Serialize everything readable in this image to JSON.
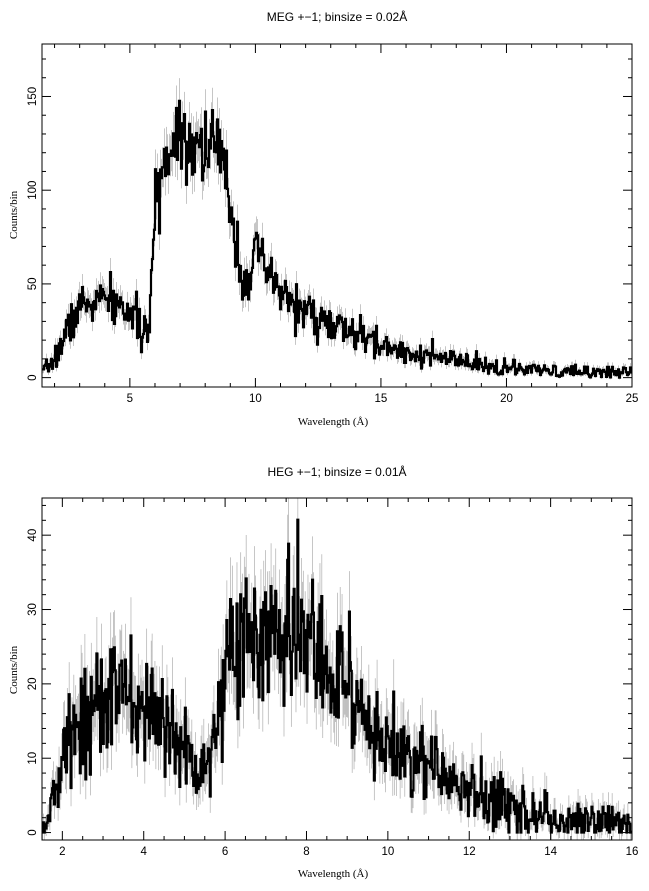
{
  "chart_data": [
    {
      "type": "line",
      "title": "MEG +−1; binsize = 0.02Å",
      "xlabel": "Wavelength (Å)",
      "ylabel": "Counts/bin",
      "xlim": [
        1.5,
        25
      ],
      "ylim": [
        -5,
        178
      ],
      "xticks": [
        5,
        10,
        15,
        20,
        25
      ],
      "yticks": [
        0,
        50,
        100,
        150
      ],
      "grid": false,
      "series": [
        {
          "style": "histogram-with-errorbars",
          "x": [
            1.5,
            2.0,
            2.5,
            3.0,
            3.5,
            4.0,
            4.5,
            5.0,
            5.5,
            5.8,
            6.0,
            6.5,
            7.0,
            7.5,
            8.0,
            8.5,
            9.0,
            9.5,
            10.0,
            10.5,
            11.0,
            12.0,
            13.0,
            14.0,
            15.0,
            16.0,
            17.0,
            18.0,
            19.0,
            20.0,
            21.0,
            22.0,
            23.0,
            24.0,
            25.0
          ],
          "values": [
            2,
            10,
            25,
            38,
            40,
            42,
            38,
            35,
            25,
            25,
            95,
            120,
            135,
            125,
            125,
            122,
            95,
            50,
            65,
            55,
            45,
            35,
            28,
            23,
            17,
            14,
            11,
            9,
            6,
            5,
            4,
            3,
            3,
            3,
            3
          ]
        }
      ]
    },
    {
      "type": "line",
      "title": "HEG +−1; binsize = 0.01Å",
      "xlabel": "Wavelength (Å)",
      "ylabel": "Counts/bin",
      "xlim": [
        1.5,
        16
      ],
      "ylim": [
        -1,
        45
      ],
      "xticks": [
        2,
        4,
        6,
        8,
        10,
        12,
        14,
        16
      ],
      "yticks": [
        0,
        10,
        20,
        30,
        40
      ],
      "grid": false,
      "series": [
        {
          "style": "histogram-with-errorbars",
          "x": [
            1.5,
            1.7,
            2.0,
            2.3,
            2.5,
            3.0,
            3.5,
            4.0,
            4.5,
            5.0,
            5.5,
            5.8,
            6.0,
            6.5,
            7.0,
            7.5,
            8.0,
            8.5,
            9.0,
            9.5,
            10.0,
            10.5,
            11.0,
            11.5,
            12.0,
            12.5,
            13.0,
            13.5,
            14.0,
            14.5,
            15.0,
            15.5,
            16.0
          ],
          "values": [
            0.5,
            3,
            9,
            14,
            16,
            18,
            18,
            16,
            15,
            11,
            9,
            14,
            24,
            26,
            26,
            26,
            26,
            23,
            19,
            15,
            12,
            10,
            9,
            7,
            5.5,
            4.5,
            3.5,
            2.5,
            2,
            2,
            1.5,
            1.5,
            1
          ]
        }
      ]
    }
  ]
}
